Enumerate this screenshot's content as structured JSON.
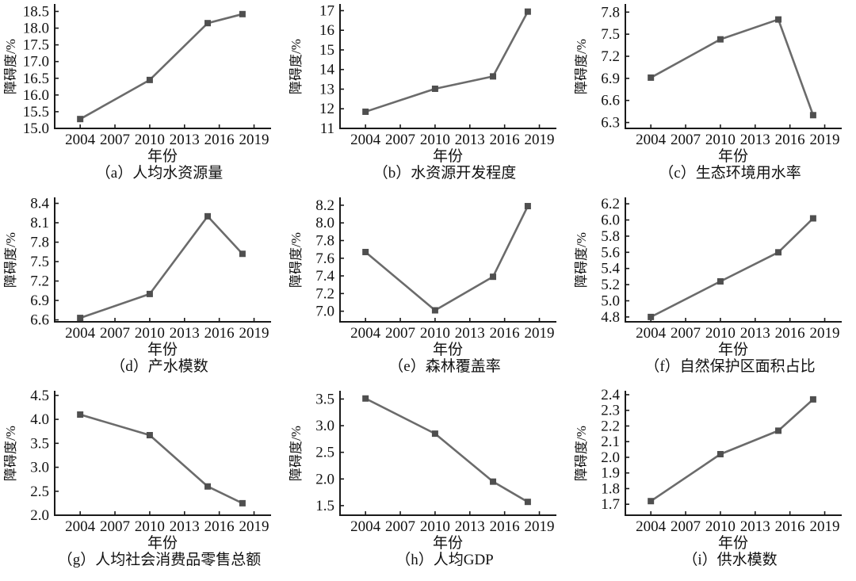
{
  "page": {
    "background": "#ffffff"
  },
  "style": {
    "line_color": "#6b6b6b",
    "marker_color": "#4f4f4f",
    "axis_color": "#1a1a1a",
    "marker_shape": "square"
  },
  "chart_data": [
    {
      "type": "line",
      "panel": "a",
      "title": "人均水资源量",
      "caption": "（a）人均水资源量",
      "xlabel": "年份",
      "ylabel": "障碍度/%",
      "x": [
        2004,
        2010,
        2015,
        2018
      ],
      "values": [
        15.28,
        16.45,
        18.15,
        18.42
      ],
      "xticks": [
        2004,
        2007,
        2010,
        2013,
        2016,
        2019
      ],
      "yticks": [
        15.0,
        15.5,
        16.0,
        16.5,
        17.0,
        17.5,
        18.0,
        18.5
      ],
      "ytick_labels": [
        "15.0",
        "15.5",
        "16.0",
        "16.5",
        "17.0",
        "17.5",
        "18.0",
        "18.5"
      ],
      "ylim": [
        15.0,
        18.7
      ],
      "xlim": [
        2001.8,
        2020.4
      ],
      "grid": false
    },
    {
      "type": "line",
      "panel": "b",
      "title": "水资源开发程度",
      "caption": "（b）水资源开发程度",
      "xlabel": "年份",
      "ylabel": "障碍度/%",
      "x": [
        2004,
        2010,
        2015,
        2018
      ],
      "values": [
        11.85,
        13.02,
        13.65,
        16.95
      ],
      "xticks": [
        2004,
        2007,
        2010,
        2013,
        2016,
        2019
      ],
      "yticks": [
        11,
        12,
        13,
        14,
        15,
        16,
        17
      ],
      "ytick_labels": [
        "11",
        "12",
        "13",
        "14",
        "15",
        "16",
        "17"
      ],
      "ylim": [
        11,
        17.3
      ],
      "xlim": [
        2001.8,
        2020.4
      ],
      "grid": false
    },
    {
      "type": "line",
      "panel": "c",
      "title": "生态环境用水率",
      "caption": "（c）生态环境用水率",
      "xlabel": "年份",
      "ylabel": "障碍度/%",
      "x": [
        2004,
        2010,
        2015,
        2018
      ],
      "values": [
        6.91,
        7.43,
        7.7,
        6.4
      ],
      "xticks": [
        2004,
        2007,
        2010,
        2013,
        2016,
        2019
      ],
      "yticks": [
        6.3,
        6.6,
        6.9,
        7.2,
        7.5,
        7.8
      ],
      "ytick_labels": [
        "6.3",
        "6.6",
        "6.9",
        "7.2",
        "7.5",
        "7.8"
      ],
      "ylim": [
        6.22,
        7.9
      ],
      "xlim": [
        2001.8,
        2020.4
      ],
      "grid": false
    },
    {
      "type": "line",
      "panel": "d",
      "title": "产水模数",
      "caption": "（d）产水模数",
      "xlabel": "年份",
      "ylabel": "障碍度/%",
      "x": [
        2004,
        2010,
        2015,
        2018
      ],
      "values": [
        6.63,
        7.0,
        8.2,
        7.62
      ],
      "xticks": [
        2004,
        2007,
        2010,
        2013,
        2016,
        2019
      ],
      "yticks": [
        6.6,
        6.9,
        7.2,
        7.5,
        7.8,
        8.1,
        8.4
      ],
      "ytick_labels": [
        "6.6",
        "6.9",
        "7.2",
        "7.5",
        "7.8",
        "8.1",
        "8.4"
      ],
      "ylim": [
        6.57,
        8.48
      ],
      "xlim": [
        2001.8,
        2020.4
      ],
      "grid": false
    },
    {
      "type": "line",
      "panel": "e",
      "title": "森林覆盖率",
      "caption": "（e）森林覆盖率",
      "xlabel": "年份",
      "ylabel": "障碍度/%",
      "x": [
        2004,
        2010,
        2015,
        2018
      ],
      "values": [
        7.67,
        7.01,
        7.39,
        8.19
      ],
      "xticks": [
        2004,
        2007,
        2010,
        2013,
        2016,
        2019
      ],
      "yticks": [
        7.0,
        7.2,
        7.4,
        7.6,
        7.8,
        8.0,
        8.2
      ],
      "ytick_labels": [
        "7.0",
        "7.2",
        "7.4",
        "7.6",
        "7.8",
        "8.0",
        "8.2"
      ],
      "ylim": [
        6.88,
        8.28
      ],
      "xlim": [
        2001.8,
        2020.4
      ],
      "grid": false
    },
    {
      "type": "line",
      "panel": "f",
      "title": "自然保护区面积占比",
      "caption": "（f）自然保护区面积占比",
      "xlabel": "年份",
      "ylabel": "障碍度/%",
      "x": [
        2004,
        2010,
        2015,
        2018
      ],
      "values": [
        4.8,
        5.24,
        5.6,
        6.02
      ],
      "xticks": [
        2004,
        2007,
        2010,
        2013,
        2016,
        2019
      ],
      "yticks": [
        4.8,
        5.0,
        5.2,
        5.4,
        5.6,
        5.8,
        6.0,
        6.2
      ],
      "ytick_labels": [
        "4.8",
        "5.0",
        "5.2",
        "5.4",
        "5.6",
        "5.8",
        "6.0",
        "6.2"
      ],
      "ylim": [
        4.74,
        6.27
      ],
      "xlim": [
        2001.8,
        2020.4
      ],
      "grid": false
    },
    {
      "type": "line",
      "panel": "g",
      "title": "人均社会消费品零售总额",
      "caption": "（g）人均社会消费品零售总额",
      "xlabel": "年份",
      "ylabel": "障碍度/%",
      "x": [
        2004,
        2010,
        2015,
        2018
      ],
      "values": [
        4.1,
        3.67,
        2.6,
        2.25
      ],
      "xticks": [
        2004,
        2007,
        2010,
        2013,
        2016,
        2019
      ],
      "yticks": [
        2.0,
        2.5,
        3.0,
        3.5,
        4.0,
        4.5
      ],
      "ytick_labels": [
        "2.0",
        "2.5",
        "3.0",
        "3.5",
        "4.0",
        "4.5"
      ],
      "ylim": [
        2.0,
        4.58
      ],
      "xlim": [
        2001.8,
        2020.4
      ],
      "grid": false
    },
    {
      "type": "line",
      "panel": "h",
      "title": "人均GDP",
      "caption": "（h）人均GDP",
      "xlabel": "年份",
      "ylabel": "障碍度/%",
      "x": [
        2004,
        2010,
        2015,
        2018
      ],
      "values": [
        3.51,
        2.85,
        1.95,
        1.57
      ],
      "xticks": [
        2004,
        2007,
        2010,
        2013,
        2016,
        2019
      ],
      "yticks": [
        1.5,
        2.0,
        2.5,
        3.0,
        3.5
      ],
      "ytick_labels": [
        "1.5",
        "2.0",
        "2.5",
        "3.0",
        "3.5"
      ],
      "ylim": [
        1.32,
        3.64
      ],
      "xlim": [
        2001.8,
        2020.4
      ],
      "grid": false
    },
    {
      "type": "line",
      "panel": "i",
      "title": "供水模数",
      "caption": "（i）供水模数",
      "xlabel": "年份",
      "ylabel": "障碍度/%",
      "x": [
        2004,
        2010,
        2015,
        2018
      ],
      "values": [
        1.72,
        2.02,
        2.17,
        2.37
      ],
      "xticks": [
        2004,
        2007,
        2010,
        2013,
        2016,
        2019
      ],
      "yticks": [
        1.7,
        1.8,
        1.9,
        2.0,
        2.1,
        2.2,
        2.3,
        2.4
      ],
      "ytick_labels": [
        "1.7",
        "1.8",
        "1.9",
        "2.0",
        "2.1",
        "2.2",
        "2.3",
        "2.4"
      ],
      "ylim": [
        1.63,
        2.42
      ],
      "xlim": [
        2001.8,
        2020.4
      ],
      "grid": false
    }
  ]
}
